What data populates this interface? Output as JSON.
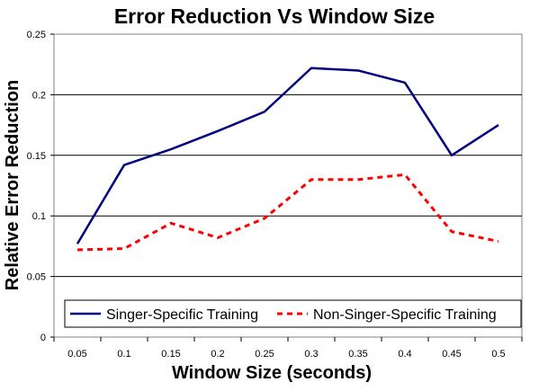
{
  "chart_data": {
    "type": "line",
    "title": "Error Reduction Vs Window Size",
    "xlabel": "Window Size (seconds)",
    "ylabel": "Relative Error Reduction",
    "categories": [
      "0.05",
      "0.1",
      "0.15",
      "0.2",
      "0.25",
      "0.3",
      "0.35",
      "0.4",
      "0.45",
      "0.5"
    ],
    "yticks": [
      "0",
      "0.05",
      "0.1",
      "0.15",
      "0.2",
      "0.25"
    ],
    "ylim": [
      0,
      0.25
    ],
    "grid": true,
    "legend_position": "bottom-inside",
    "series": [
      {
        "name": "Singer-Specific Training",
        "values": [
          0.077,
          0.142,
          0.155,
          0.17,
          0.186,
          0.222,
          0.22,
          0.21,
          0.15,
          0.175
        ],
        "color": "#000080",
        "style": "solid"
      },
      {
        "name": "Non-Singer-Specific Training",
        "values": [
          0.072,
          0.073,
          0.094,
          0.082,
          0.098,
          0.13,
          0.13,
          0.134,
          0.087,
          0.079
        ],
        "color": "#ff0000",
        "style": "dashed"
      }
    ]
  }
}
